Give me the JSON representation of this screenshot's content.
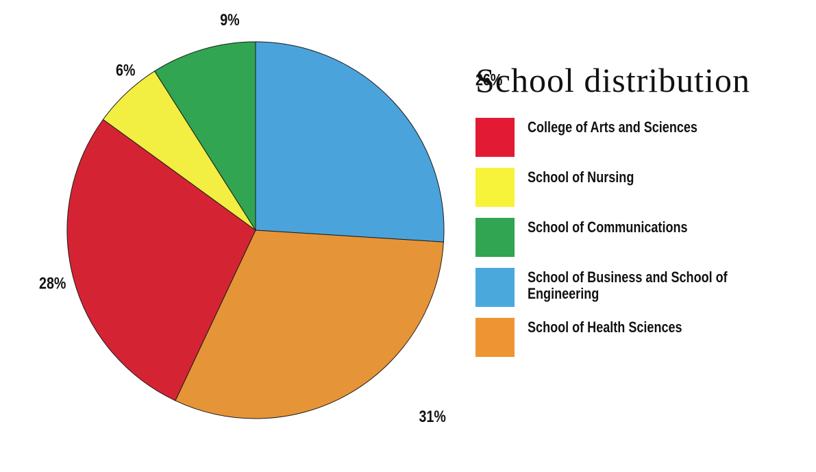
{
  "chart_data": {
    "type": "pie",
    "title": "School distribution",
    "start_angle_deg": 0,
    "direction": "clockwise",
    "slices": [
      {
        "label": "School of Business and School of Engineering",
        "value": 26,
        "display": "26%",
        "color": "#4BA3DB"
      },
      {
        "label": "School of Health Sciences",
        "value": 31,
        "display": "31%",
        "color": "#E69438"
      },
      {
        "label": "College of Arts and Sciences",
        "value": 28,
        "display": "28%",
        "color": "#D42433"
      },
      {
        "label": "School of Nursing",
        "value": 6,
        "display": "6%",
        "color": "#F2EE42"
      },
      {
        "label": "School of Communications",
        "value": 9,
        "display": "9%",
        "color": "#31A552"
      }
    ],
    "legend_position": "right",
    "legend": [
      {
        "label": "College of Arts and Sciences",
        "color": "#E31A33"
      },
      {
        "label": "School of Nursing",
        "color": "#F7F23A"
      },
      {
        "label": "School of Communications",
        "color": "#31A552"
      },
      {
        "label": "School of Business and School of Engineering",
        "color": "#4BA8DD"
      },
      {
        "label": "School of Health Sciences",
        "color": "#EF9432"
      }
    ]
  }
}
